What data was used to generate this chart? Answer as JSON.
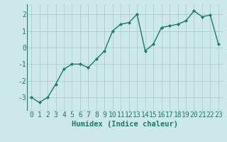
{
  "x": [
    0,
    1,
    2,
    3,
    4,
    5,
    6,
    7,
    8,
    9,
    10,
    11,
    12,
    13,
    14,
    15,
    16,
    17,
    18,
    19,
    20,
    21,
    22,
    23
  ],
  "y": [
    -3.0,
    -3.3,
    -3.0,
    -2.2,
    -1.3,
    -1.0,
    -1.0,
    -1.2,
    -0.7,
    -0.2,
    1.0,
    1.4,
    1.5,
    2.0,
    -0.2,
    0.2,
    1.2,
    1.3,
    1.4,
    1.6,
    2.2,
    1.85,
    1.95,
    0.2
  ],
  "line_color": "#1a7a6e",
  "marker": "D",
  "marker_size": 2.0,
  "bg_color": "#cce8e8",
  "grid_color": "#b0cdcd",
  "xlabel": "Humidex (Indice chaleur)",
  "ylim": [
    -3.8,
    2.6
  ],
  "xlim": [
    -0.5,
    23.5
  ],
  "yticks": [
    -3,
    -2,
    -1,
    0,
    1,
    2
  ],
  "xticks": [
    0,
    1,
    2,
    3,
    4,
    5,
    6,
    7,
    8,
    9,
    10,
    11,
    12,
    13,
    14,
    15,
    16,
    17,
    18,
    19,
    20,
    21,
    22,
    23
  ],
  "xlabel_fontsize": 7.5,
  "tick_fontsize": 7,
  "line_width": 1.0
}
